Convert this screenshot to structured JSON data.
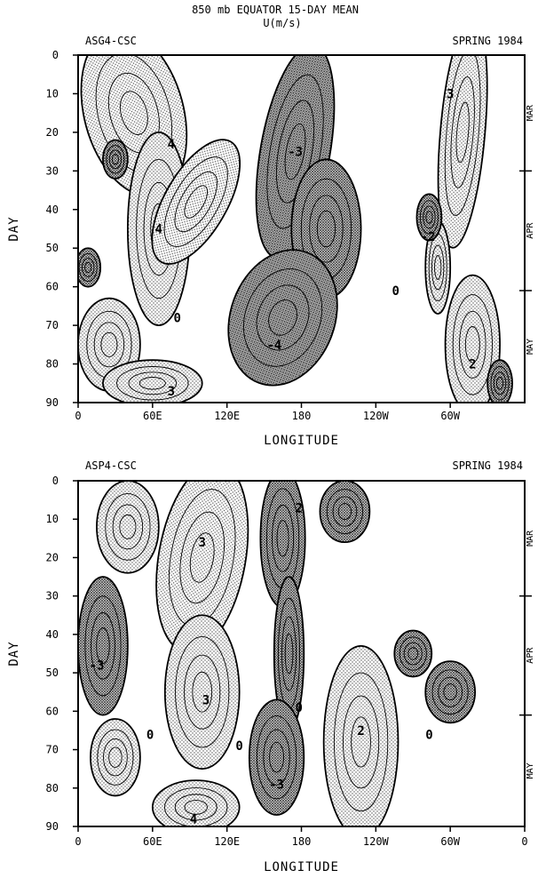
{
  "figure": {
    "title_line1": "850 mb  EQUATOR  15-DAY MEAN",
    "title_line2": "U(m/s)"
  },
  "colors": {
    "ink": "#000000",
    "positive_shade": "#e2e2e2",
    "negative_shade": "#9a9a9a",
    "background": "#ffffff"
  },
  "chart_data": [
    {
      "type": "heatmap",
      "panel_label": "ASG4-CSC",
      "season_label": "SPRING 1984",
      "xlabel": "LONGITUDE",
      "ylabel": "DAY",
      "x_ticks": [
        "0",
        "60E",
        "120E",
        "180",
        "120W",
        "60W"
      ],
      "y_ticks": [
        "0",
        "10",
        "20",
        "30",
        "40",
        "50",
        "60",
        "70",
        "80",
        "90"
      ],
      "xlim": [
        0,
        360
      ],
      "ylim": [
        0,
        90
      ],
      "month_labels": [
        "MAR",
        "APR",
        "MAY"
      ],
      "contour_labels": [
        {
          "text": "3",
          "lon": 300,
          "day": 10
        },
        {
          "text": "4",
          "lon": 75,
          "day": 23
        },
        {
          "text": "-3",
          "lon": 175,
          "day": 25
        },
        {
          "text": "4",
          "lon": 65,
          "day": 45
        },
        {
          "text": "-2",
          "lon": 282,
          "day": 47
        },
        {
          "text": "0",
          "lon": 256,
          "day": 61
        },
        {
          "text": "0",
          "lon": 80,
          "day": 68
        },
        {
          "text": "-4",
          "lon": 158,
          "day": 75
        },
        {
          "text": "2",
          "lon": 318,
          "day": 80
        },
        {
          "text": "3",
          "lon": 75,
          "day": 87
        }
      ],
      "positive_regions": [
        {
          "lon": 45,
          "day": 15,
          "rx": 40,
          "ry": 22,
          "rot": -15
        },
        {
          "lon": 65,
          "day": 45,
          "rx": 25,
          "ry": 25,
          "rot": 0
        },
        {
          "lon": 95,
          "day": 38,
          "rx": 25,
          "ry": 18,
          "rot": 30
        },
        {
          "lon": 25,
          "day": 75,
          "rx": 25,
          "ry": 12,
          "rot": 0
        },
        {
          "lon": 310,
          "day": 20,
          "rx": 18,
          "ry": 30,
          "rot": 5
        },
        {
          "lon": 318,
          "day": 75,
          "rx": 22,
          "ry": 18,
          "rot": 0
        },
        {
          "lon": 290,
          "day": 55,
          "rx": 10,
          "ry": 12,
          "rot": 0
        },
        {
          "lon": 60,
          "day": 85,
          "rx": 40,
          "ry": 6,
          "rot": 0
        }
      ],
      "negative_regions": [
        {
          "lon": 175,
          "day": 25,
          "rx": 28,
          "ry": 28,
          "rot": 10
        },
        {
          "lon": 200,
          "day": 45,
          "rx": 28,
          "ry": 18,
          "rot": 0
        },
        {
          "lon": 165,
          "day": 68,
          "rx": 42,
          "ry": 18,
          "rot": 20
        },
        {
          "lon": 30,
          "day": 27,
          "rx": 10,
          "ry": 5,
          "rot": 0
        },
        {
          "lon": 283,
          "day": 42,
          "rx": 10,
          "ry": 6,
          "rot": 0
        },
        {
          "lon": 8,
          "day": 55,
          "rx": 10,
          "ry": 5,
          "rot": 0
        },
        {
          "lon": 340,
          "day": 85,
          "rx": 10,
          "ry": 6,
          "rot": 0
        }
      ]
    },
    {
      "type": "heatmap",
      "panel_label": "ASP4-CSC",
      "season_label": "SPRING 1984",
      "xlabel": "LONGITUDE",
      "ylabel": "DAY",
      "x_ticks": [
        "0",
        "60E",
        "120E",
        "180",
        "120W",
        "60W",
        "0"
      ],
      "y_ticks": [
        "0",
        "10",
        "20",
        "30",
        "40",
        "50",
        "60",
        "70",
        "80",
        "90"
      ],
      "xlim": [
        0,
        360
      ],
      "ylim": [
        0,
        90
      ],
      "month_labels": [
        "MAR",
        "APR",
        "MAY"
      ],
      "contour_labels": [
        {
          "text": "2",
          "lon": 178,
          "day": 7
        },
        {
          "text": "3",
          "lon": 100,
          "day": 16
        },
        {
          "text": "-3",
          "lon": 15,
          "day": 48
        },
        {
          "text": "3",
          "lon": 103,
          "day": 57
        },
        {
          "text": "0",
          "lon": 178,
          "day": 59
        },
        {
          "text": "0",
          "lon": 58,
          "day": 66
        },
        {
          "text": "2",
          "lon": 228,
          "day": 65
        },
        {
          "text": "0",
          "lon": 283,
          "day": 66
        },
        {
          "text": "0",
          "lon": 130,
          "day": 69
        },
        {
          "text": "-3",
          "lon": 160,
          "day": 79
        },
        {
          "text": "4",
          "lon": 93,
          "day": 88
        }
      ],
      "positive_regions": [
        {
          "lon": 100,
          "day": 20,
          "rx": 35,
          "ry": 25,
          "rot": 10
        },
        {
          "lon": 100,
          "day": 55,
          "rx": 30,
          "ry": 20,
          "rot": 0
        },
        {
          "lon": 40,
          "day": 12,
          "rx": 25,
          "ry": 12,
          "rot": 0
        },
        {
          "lon": 228,
          "day": 68,
          "rx": 30,
          "ry": 25,
          "rot": 0
        },
        {
          "lon": 30,
          "day": 72,
          "rx": 20,
          "ry": 10,
          "rot": 0
        },
        {
          "lon": 95,
          "day": 85,
          "rx": 35,
          "ry": 7,
          "rot": 0
        }
      ],
      "negative_regions": [
        {
          "lon": 20,
          "day": 43,
          "rx": 20,
          "ry": 18,
          "rot": 0
        },
        {
          "lon": 165,
          "day": 15,
          "rx": 18,
          "ry": 18,
          "rot": 0
        },
        {
          "lon": 170,
          "day": 45,
          "rx": 12,
          "ry": 20,
          "rot": 0
        },
        {
          "lon": 160,
          "day": 72,
          "rx": 22,
          "ry": 15,
          "rot": 0
        },
        {
          "lon": 215,
          "day": 8,
          "rx": 20,
          "ry": 8,
          "rot": 0
        },
        {
          "lon": 300,
          "day": 55,
          "rx": 20,
          "ry": 8,
          "rot": 0
        },
        {
          "lon": 270,
          "day": 45,
          "rx": 15,
          "ry": 6,
          "rot": 0
        }
      ]
    }
  ]
}
